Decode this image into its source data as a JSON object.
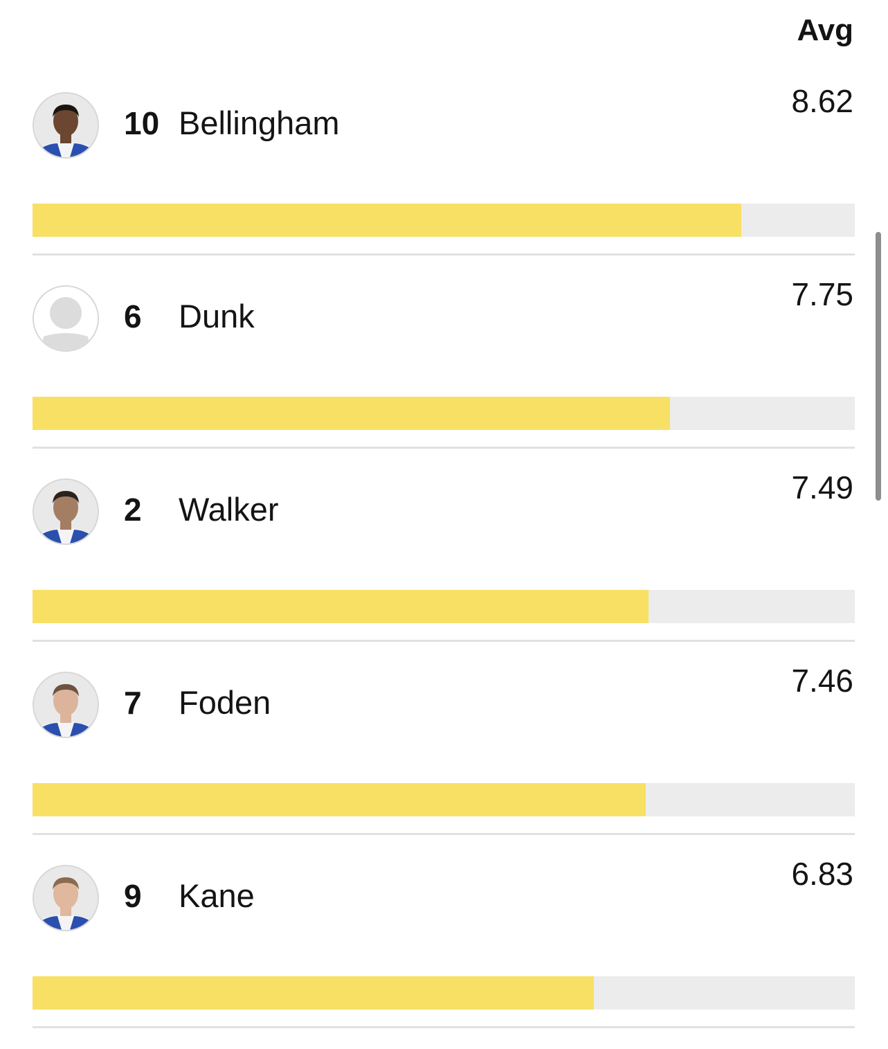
{
  "header": {
    "avg_label": "Avg"
  },
  "colors": {
    "bar_fill": "#f8e064",
    "bar_track": "#ececec",
    "divider": "#e1e1e1"
  },
  "scale": {
    "min": 0,
    "max": 10
  },
  "players": [
    {
      "number": "10",
      "name": "Bellingham",
      "avg": "8.62",
      "avatar": "player-photo-icon",
      "skin": "#6b4631",
      "hair": "#1b1410"
    },
    {
      "number": "6",
      "name": "Dunk",
      "avg": "7.75",
      "avatar": "placeholder-avatar-icon"
    },
    {
      "number": "2",
      "name": "Walker",
      "avg": "7.49",
      "avatar": "player-photo-icon",
      "skin": "#a37e63",
      "hair": "#2a221c"
    },
    {
      "number": "7",
      "name": "Foden",
      "avg": "7.46",
      "avatar": "player-photo-icon",
      "skin": "#dcb49c",
      "hair": "#6d533f"
    },
    {
      "number": "9",
      "name": "Kane",
      "avg": "6.83",
      "avatar": "player-photo-icon",
      "skin": "#e0b89e",
      "hair": "#8a6b4f"
    }
  ]
}
